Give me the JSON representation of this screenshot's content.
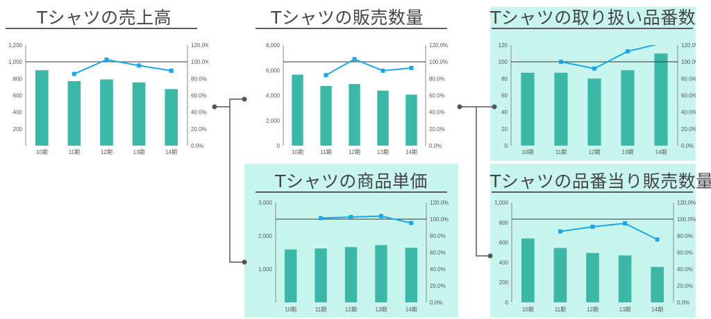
{
  "chart_data": [
    {
      "type": "bar",
      "title": "Tシャツの売上高",
      "categories": [
        "10期",
        "11期",
        "12期",
        "13期",
        "14期"
      ],
      "series": [
        {
          "kind": "bar",
          "values": [
            900,
            770,
            790,
            755,
            675
          ]
        },
        {
          "kind": "line",
          "axis": "right",
          "values": [
            null,
            85.6,
            102.6,
            95.6,
            89.4
          ]
        }
      ],
      "ylim": [
        0,
        1200
      ],
      "yticks": [
        "200",
        "400",
        "600",
        "800",
        "1,000",
        "1,200"
      ],
      "y2lim": [
        0,
        120
      ],
      "y2ticks": [
        "0.0%",
        "20.0%",
        "40.0%",
        "60.0%",
        "80.0%",
        "100.0%",
        "120.0%"
      ],
      "reference_line": 100,
      "bar_color": "#3bb8a8",
      "line_color": "#1ba6e6",
      "highlighted": false
    },
    {
      "type": "bar",
      "title": "Tシャツの販売数量",
      "categories": [
        "10期",
        "11期",
        "12期",
        "13期",
        "14期"
      ],
      "series": [
        {
          "kind": "bar",
          "values": [
            5650,
            4750,
            4900,
            4380,
            4060
          ]
        },
        {
          "kind": "line",
          "axis": "right",
          "values": [
            null,
            84.1,
            103.2,
            89.4,
            92.7
          ]
        }
      ],
      "ylim": [
        0,
        8000
      ],
      "yticks": [
        "0",
        "2,000",
        "4,000",
        "6,000",
        "8,000"
      ],
      "y2lim": [
        0,
        120
      ],
      "y2ticks": [
        "0.0%",
        "20.0%",
        "40.0%",
        "60.0%",
        "80.0%",
        "100.0%",
        "120.0%"
      ],
      "reference_line": 100,
      "bar_color": "#3bb8a8",
      "line_color": "#1ba6e6",
      "highlighted": false
    },
    {
      "type": "bar",
      "title": "Tシャツの取り扱い品番数",
      "categories": [
        "10期",
        "11期",
        "12期",
        "13期",
        "14期"
      ],
      "series": [
        {
          "kind": "bar",
          "values": [
            87,
            87,
            80,
            90,
            110
          ]
        },
        {
          "kind": "line",
          "axis": "right",
          "values": [
            null,
            100,
            92,
            112.5,
            122
          ]
        }
      ],
      "ylim": [
        0,
        120
      ],
      "yticks": [
        "0",
        "20",
        "40",
        "60",
        "80",
        "100",
        "120"
      ],
      "y2lim": [
        0,
        120
      ],
      "y2ticks": [
        "0.0%",
        "20.0%",
        "40.0%",
        "60.0%",
        "80.0%",
        "100.0%",
        "120.0%"
      ],
      "reference_line": 100,
      "bar_color": "#3bb8a8",
      "line_color": "#1ba6e6",
      "highlighted": true
    },
    {
      "type": "bar",
      "title": "Tシャツの商品単価",
      "categories": [
        "10期",
        "11期",
        "12期",
        "13期",
        "14期"
      ],
      "series": [
        {
          "kind": "bar",
          "values": [
            1590,
            1620,
            1660,
            1720,
            1640
          ]
        },
        {
          "kind": "line",
          "axis": "right",
          "values": [
            null,
            101.2,
            102.5,
            103.6,
            95.3
          ]
        }
      ],
      "ylim": [
        0,
        3000
      ],
      "yticks": [
        "1,000",
        "2,000",
        "3,000"
      ],
      "y2lim": [
        0,
        120
      ],
      "y2ticks": [
        "0.0%",
        "20.0%",
        "40.0%",
        "60.0%",
        "80.0%",
        "100.0%",
        "120.0%"
      ],
      "reference_line": 100,
      "bar_color": "#3bb8a8",
      "line_color": "#1ba6e6",
      "highlighted": true
    },
    {
      "type": "bar",
      "title": "Tシャツの品番当り販売数量",
      "categories": [
        "10期",
        "11期",
        "12期",
        "13期",
        "14期"
      ],
      "series": [
        {
          "kind": "bar",
          "values": [
            640,
            545,
            495,
            470,
            355
          ]
        },
        {
          "kind": "line",
          "axis": "right",
          "values": [
            null,
            85.2,
            90.8,
            94.9,
            75.5
          ]
        }
      ],
      "ylim": [
        0,
        1000
      ],
      "yticks": [
        "0",
        "200",
        "400",
        "600",
        "800",
        "1,000"
      ],
      "y2lim": [
        0,
        120
      ],
      "y2ticks": [
        "0.0%",
        "20.0%",
        "40.0%",
        "60.0%",
        "80.0%",
        "100.0%",
        "120.0%"
      ],
      "reference_line": 100,
      "bar_color": "#3bb8a8",
      "line_color": "#1ba6e6",
      "highlighted": true
    }
  ],
  "connector_color": "#555555"
}
